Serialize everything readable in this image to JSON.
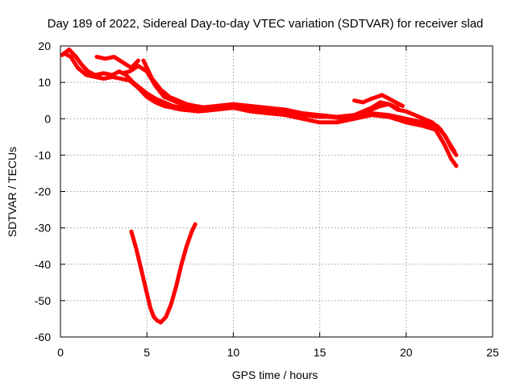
{
  "chart_data": {
    "type": "line",
    "title": "Day 189 of 2022, Sidereal Day-to-day VTEC variation (SDTVAR) for receiver slad",
    "xlabel": "GPS time / hours",
    "ylabel": "SDTVAR / TECUs",
    "xlim": [
      0,
      25
    ],
    "ylim": [
      -60,
      20
    ],
    "xticks": [
      0,
      5,
      10,
      15,
      20,
      25
    ],
    "yticks": [
      -60,
      -50,
      -40,
      -30,
      -20,
      -10,
      0,
      10,
      20
    ],
    "xtick_labels": [
      "0",
      "5",
      "10",
      "15",
      "20",
      "25"
    ],
    "ytick_labels": [
      "-60",
      "-50",
      "-40",
      "-30",
      "-20",
      "-10",
      "0",
      "10",
      "20"
    ],
    "grid": true,
    "series_color": "#ff0000",
    "series": [
      {
        "name": "track-a",
        "x": [
          0.1,
          0.5,
          0.9,
          1.2,
          1.6,
          2.0,
          2.5,
          3.0,
          3.4,
          3.8,
          4.2,
          4.6,
          5.0,
          5.5,
          6.0,
          6.5,
          7.0,
          7.5,
          8.0,
          9.0,
          10.0,
          11.0,
          12.0,
          13.0,
          14.0,
          15.0,
          16.0,
          17.0,
          18.0,
          19.0,
          20.0,
          21.0,
          21.8,
          22.3,
          22.6,
          22.9
        ],
        "y": [
          17.5,
          19,
          17,
          15,
          13,
          12,
          12.5,
          12,
          13,
          12,
          10,
          8.5,
          7,
          5.5,
          4.5,
          3.5,
          3,
          2.5,
          2.5,
          3,
          3,
          2.5,
          2,
          1.5,
          1,
          0.5,
          0.5,
          1,
          1.5,
          1,
          0,
          -1,
          -2,
          -5,
          -8,
          -10
        ]
      },
      {
        "name": "track-b",
        "x": [
          0.2,
          0.6,
          1.0,
          1.5,
          2.0,
          2.5,
          3.0,
          3.5,
          4.0,
          4.5,
          5.0,
          5.5,
          6.0,
          6.5,
          7.0,
          8.0,
          9.0,
          10.0,
          11.0,
          12.0,
          13.0,
          14.0,
          15.0,
          16.0,
          17.0,
          18.0,
          19.0,
          20.0,
          21.0,
          21.7,
          22.2,
          22.6,
          22.9
        ],
        "y": [
          18,
          17,
          14,
          12,
          11.5,
          11,
          11.5,
          11,
          10.5,
          8.5,
          6,
          4.5,
          3.5,
          3,
          2.5,
          2,
          2.5,
          3,
          2,
          1.5,
          1,
          0,
          -1,
          -1,
          0,
          1,
          0.5,
          -1,
          -2,
          -3,
          -7,
          -11,
          -13
        ]
      },
      {
        "name": "track-c",
        "x": [
          2.1,
          2.6,
          3.1,
          3.6,
          4.1,
          4.5
        ],
        "y": [
          17,
          16.5,
          17,
          15.5,
          14,
          16
        ]
      },
      {
        "name": "track-d",
        "x": [
          3.6,
          4.0,
          4.5,
          5.0,
          5.5,
          6.0,
          7.0,
          8.0,
          9.0,
          10.0,
          11.0,
          12.0,
          13.0,
          14.0,
          15.0,
          16.0,
          17.0,
          17.5,
          18.0,
          18.5,
          19.0,
          19.5,
          20.0,
          20.5,
          21.0,
          21.5,
          22.0,
          22.4,
          22.8
        ],
        "y": [
          12.5,
          13,
          14.5,
          13,
          9,
          6,
          4,
          3,
          3.5,
          4,
          3.5,
          3,
          2.5,
          1.5,
          1,
          0.5,
          1,
          2,
          3,
          4.5,
          4,
          2.5,
          2,
          1,
          0,
          -1,
          -3,
          -6,
          -9
        ]
      },
      {
        "name": "track-e",
        "x": [
          4.8,
          5.3,
          5.8,
          6.3,
          6.8,
          7.3,
          7.8,
          8.5,
          9.5,
          10.5,
          11.5,
          12.5,
          13.5,
          14.5,
          15.5,
          16.5,
          17.0,
          17.5,
          18.0,
          18.5,
          19.0,
          19.5
        ],
        "y": [
          16,
          11,
          8,
          6,
          5,
          4,
          3.5,
          3,
          3.5,
          3,
          2.5,
          2,
          1.5,
          1,
          0.5,
          0,
          0.5,
          1.5,
          2.5,
          3.5,
          4,
          3
        ]
      },
      {
        "name": "track-f",
        "x": [
          17.0,
          17.5,
          18.0,
          18.3,
          18.6,
          19.0,
          19.4,
          19.8
        ],
        "y": [
          5,
          4.5,
          5.5,
          6,
          6.5,
          5.5,
          4.5,
          3.5
        ]
      },
      {
        "name": "dip",
        "x": [
          4.1,
          4.4,
          4.7,
          5.0,
          5.2,
          5.4,
          5.6,
          5.8,
          6.1,
          6.4,
          6.7,
          7.0,
          7.3,
          7.6,
          7.8
        ],
        "y": [
          -31,
          -36,
          -42,
          -48,
          -52,
          -54.5,
          -55.5,
          -56,
          -54.5,
          -51,
          -46,
          -40,
          -35,
          -31,
          -29
        ]
      }
    ]
  }
}
